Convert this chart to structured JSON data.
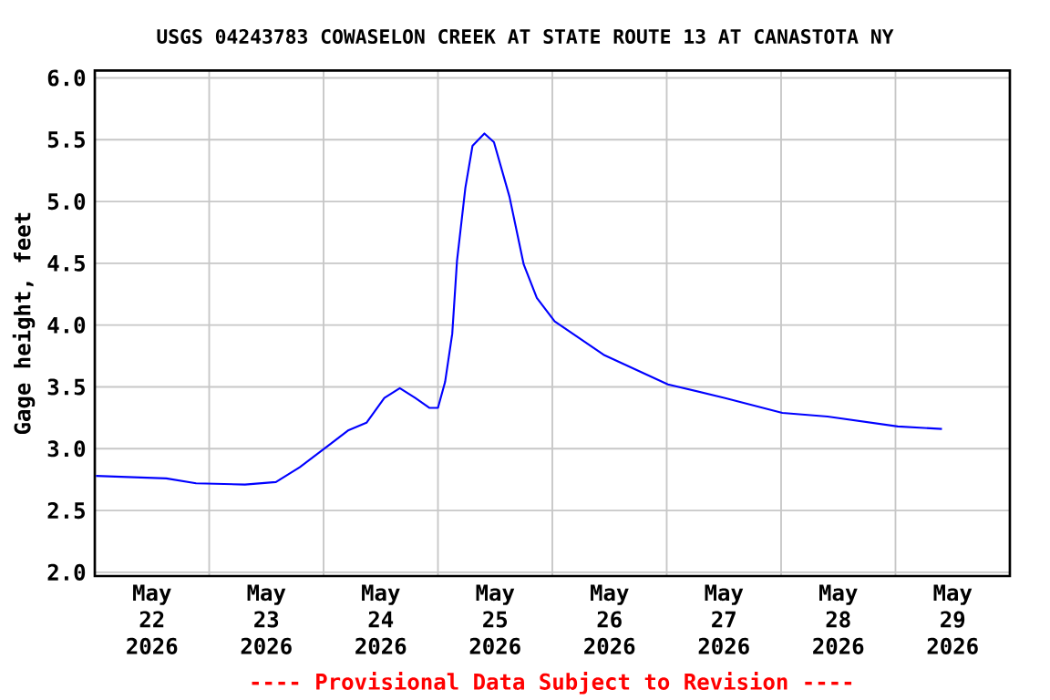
{
  "chart_data": {
    "type": "line",
    "title": "USGS 04243783 COWASELON CREEK AT STATE ROUTE 13 AT CANASTOTA NY",
    "ylabel": "Gage height, feet",
    "annotations": [
      "---- Provisional Data Subject to Revision ----"
    ],
    "x": [
      "2026-05-22T00:15",
      "2026-05-22T15:00",
      "2026-05-22T21:15",
      "2026-05-23T07:30",
      "2026-05-23T14:00",
      "2026-05-23T19:00",
      "2026-05-24T01:30",
      "2026-05-24T05:15",
      "2026-05-24T09:00",
      "2026-05-24T12:45",
      "2026-05-24T16:00",
      "2026-05-24T19:15",
      "2026-05-24T22:15",
      "2026-05-25T00:00",
      "2026-05-25T01:30",
      "2026-05-25T03:00",
      "2026-05-25T04:00",
      "2026-05-25T05:45",
      "2026-05-25T07:15",
      "2026-05-25T09:45",
      "2026-05-25T11:45",
      "2026-05-25T15:00",
      "2026-05-25T18:00",
      "2026-05-25T20:45",
      "2026-05-26T00:30",
      "2026-05-26T10:45",
      "2026-05-27T00:15",
      "2026-05-27T12:15",
      "2026-05-28T00:15",
      "2026-05-28T09:45",
      "2026-05-29T00:30",
      "2026-05-29T09:45"
    ],
    "series": [
      {
        "color": "#0000ff",
        "values": [
          2.78,
          2.76,
          2.72,
          2.71,
          2.73,
          2.85,
          3.04,
          3.15,
          3.21,
          3.41,
          3.49,
          3.41,
          3.33,
          3.33,
          3.54,
          3.93,
          4.52,
          5.11,
          5.45,
          5.55,
          5.48,
          5.04,
          4.49,
          4.22,
          4.03,
          3.76,
          3.52,
          3.41,
          3.29,
          3.26,
          3.18,
          3.16
        ]
      }
    ],
    "xlim": [
      "2026-05-22T00:00",
      "2026-05-30T00:00"
    ],
    "xticks": [
      {
        "value": "2026-05-22T00:00",
        "label": null
      },
      {
        "value": "2026-05-23T00:00",
        "label": null
      },
      {
        "value": "2026-05-24T00:00",
        "label": null
      },
      {
        "value": "2026-05-25T00:00",
        "label": null
      },
      {
        "value": "2026-05-26T00:00",
        "label": null
      },
      {
        "value": "2026-05-27T00:00",
        "label": null
      },
      {
        "value": "2026-05-28T00:00",
        "label": null
      },
      {
        "value": "2026-05-29T00:00",
        "label": null
      },
      {
        "value": "2026-05-30T00:00",
        "label": null
      },
      {
        "value": "2026-05-22T12:00",
        "label": "May 22 2026"
      },
      {
        "value": "2026-05-23T12:00",
        "label": "May 23 2026"
      },
      {
        "value": "2026-05-24T12:00",
        "label": "May 24 2026"
      },
      {
        "value": "2026-05-25T12:00",
        "label": "May 25 2026"
      },
      {
        "value": "2026-05-26T12:00",
        "label": "May 26 2026"
      },
      {
        "value": "2026-05-27T12:00",
        "label": "May 27 2026"
      },
      {
        "value": "2026-05-28T12:00",
        "label": "May 28 2026"
      },
      {
        "value": "2026-05-29T12:00",
        "label": "May 29 2026"
      }
    ],
    "ylim": [
      1.97,
      6.06
    ],
    "yticks": [
      {
        "value": 2.0,
        "label": "2.0"
      },
      {
        "value": 2.5,
        "label": "2.5"
      },
      {
        "value": 3.0,
        "label": "3.0"
      },
      {
        "value": 3.5,
        "label": "3.5"
      },
      {
        "value": 4.0,
        "label": "4.0"
      },
      {
        "value": 4.5,
        "label": "4.5"
      },
      {
        "value": 5.0,
        "label": "5.0"
      },
      {
        "value": 5.5,
        "label": "5.5"
      },
      {
        "value": 6.0,
        "label": "6.0"
      }
    ],
    "grid": true,
    "marker": "none",
    "line_style": "solid"
  }
}
